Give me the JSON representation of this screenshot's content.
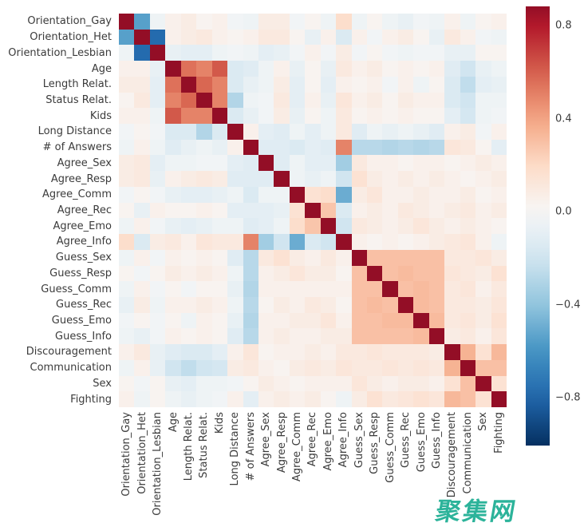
{
  "chart_data": {
    "type": "heatmap",
    "title": "",
    "xlabel": "",
    "ylabel": "",
    "colormap": "RdBu_r",
    "grid": false,
    "labels": [
      "Orientation_Gay",
      "Orientation_Het",
      "Orientation_Lesbian",
      "Age",
      "Length Relat.",
      "Status Relat.",
      "Kids",
      "Long Distance",
      "# of Answers",
      "Agree_Sex",
      "Agree_Resp",
      "Agree_Comm",
      "Agree_Rec",
      "Agree_Emo",
      "Agree_Info",
      "Guess_Sex",
      "Guess_Resp",
      "Guess_Comm",
      "Guess_Rec",
      "Guess_Emo",
      "Guess_Info",
      "Discouragement",
      "Communication",
      "Sex",
      "Fighting"
    ],
    "diagonal_value": 1.0,
    "matrix_upper_triangle": [
      [
        -0.55,
        -0.05,
        0.05,
        0.08,
        0.03,
        0.05,
        -0.03,
        -0.05,
        0.08,
        0.08,
        -0.03,
        0.03,
        -0.05,
        0.18,
        -0.05,
        0.03,
        -0.05,
        -0.08,
        -0.03,
        -0.05,
        0.05,
        -0.05,
        0.03,
        0.05
      ],
      [
        -0.78,
        0.05,
        0.08,
        0.1,
        0.05,
        0.03,
        0.05,
        0.1,
        0.1,
        0.03,
        -0.08,
        0.05,
        -0.15,
        0.05,
        -0.03,
        0.05,
        0.08,
        0.03,
        -0.08,
        0.1,
        0.05,
        -0.03,
        -0.05
      ],
      [
        -0.08,
        -0.1,
        -0.1,
        -0.05,
        -0.03,
        -0.05,
        -0.1,
        -0.08,
        -0.03,
        0.05,
        -0.03,
        0.08,
        -0.03,
        0.03,
        -0.03,
        -0.05,
        -0.03,
        -0.03,
        -0.08,
        -0.08,
        0.03,
        0.03
      ],
      [
        0.55,
        0.5,
        0.62,
        -0.15,
        -0.12,
        -0.05,
        0.05,
        -0.08,
        0.03,
        -0.08,
        0.1,
        0.05,
        0.08,
        0.03,
        0.05,
        0.03,
        0.05,
        -0.12,
        -0.2,
        -0.08,
        -0.05
      ],
      [
        0.58,
        0.5,
        -0.15,
        -0.08,
        -0.05,
        0.08,
        -0.1,
        0.03,
        -0.1,
        0.05,
        0.03,
        0.05,
        -0.03,
        0.05,
        -0.05,
        0.03,
        -0.15,
        -0.25,
        -0.1,
        -0.08
      ],
      [
        0.5,
        -0.3,
        -0.05,
        -0.03,
        0.1,
        -0.1,
        0.05,
        -0.08,
        0.12,
        0.05,
        0.08,
        0.03,
        0.08,
        0.05,
        0.05,
        -0.15,
        -0.2,
        -0.05,
        -0.05
      ],
      [
        -0.15,
        -0.08,
        -0.03,
        0.08,
        -0.08,
        0.03,
        -0.05,
        0.1,
        0.03,
        0.05,
        0.03,
        0.05,
        0.03,
        0.03,
        -0.1,
        -0.18,
        -0.05,
        -0.03
      ],
      [
        0.05,
        -0.1,
        -0.12,
        -0.05,
        -0.1,
        -0.05,
        0.1,
        -0.12,
        -0.05,
        -0.08,
        -0.05,
        -0.08,
        -0.12,
        0.05,
        0.08,
        -0.03,
        0.05
      ],
      [
        -0.12,
        -0.12,
        -0.15,
        -0.1,
        -0.12,
        0.5,
        -0.28,
        -0.28,
        -0.3,
        -0.28,
        -0.3,
        -0.28,
        0.12,
        0.1,
        0.03,
        -0.1
      ],
      [
        -0.12,
        -0.05,
        -0.1,
        -0.1,
        -0.35,
        0.1,
        0.05,
        0.05,
        0.03,
        0.05,
        0.05,
        0.03,
        0.05,
        0.08,
        0.05
      ],
      [
        -0.05,
        -0.08,
        -0.05,
        -0.2,
        0.15,
        0.08,
        0.05,
        0.08,
        0.05,
        0.08,
        0.05,
        0.03,
        0.05,
        0.08
      ],
      [
        0.15,
        0.18,
        -0.5,
        0.08,
        0.12,
        0.05,
        0.05,
        0.08,
        0.05,
        0.05,
        0.08,
        0.03,
        0.05
      ],
      [
        0.28,
        -0.15,
        0.05,
        0.08,
        0.05,
        0.1,
        0.08,
        0.05,
        0.08,
        0.1,
        0.05,
        0.08
      ],
      [
        -0.2,
        0.1,
        0.08,
        0.05,
        0.08,
        0.12,
        0.08,
        0.05,
        0.08,
        0.05,
        0.03
      ],
      [
        0.05,
        0.03,
        0.05,
        0.03,
        0.05,
        0.08,
        0.1,
        0.12,
        0.05,
        -0.05
      ],
      [
        0.3,
        0.3,
        0.3,
        0.3,
        0.3,
        0.1,
        0.1,
        0.12,
        0.08
      ],
      [
        0.3,
        0.32,
        0.3,
        0.3,
        0.12,
        0.1,
        0.08,
        0.15
      ],
      [
        0.3,
        0.32,
        0.3,
        0.1,
        0.12,
        0.05,
        0.1
      ],
      [
        0.32,
        0.3,
        0.1,
        0.1,
        0.08,
        0.12
      ],
      [
        0.32,
        0.1,
        0.12,
        0.08,
        0.15
      ],
      [
        0.08,
        0.1,
        0.05,
        0.12
      ],
      [
        0.35,
        0.15,
        0.33
      ],
      [
        0.3,
        0.3
      ],
      [
        0.15
      ]
    ],
    "colorbar": {
      "value_top": 0.883,
      "value_bottom": -1.006,
      "ticks": [
        {
          "label": "0.8",
          "value": 0.8
        },
        {
          "label": "0.4",
          "value": 0.4
        },
        {
          "label": "0.0",
          "value": 0.0
        },
        {
          "label": "−0.4",
          "value": -0.4
        },
        {
          "label": "−0.8",
          "value": -0.8
        }
      ],
      "anchor_colors": {
        "neg_1": "#053061",
        "neg_08": "#2166ac",
        "neg_06": "#4393c3",
        "neg_04": "#92c5de",
        "neg_02": "#d1e5f0",
        "zero": "#f7f7f7",
        "pos_02": "#fddbc7",
        "pos_04": "#f4a582",
        "pos_06": "#d6604d",
        "pos_08": "#b2182b",
        "pos_1": "#67001f"
      }
    }
  },
  "watermark": {
    "text": "聚集网",
    "color": "#2cb39a"
  }
}
